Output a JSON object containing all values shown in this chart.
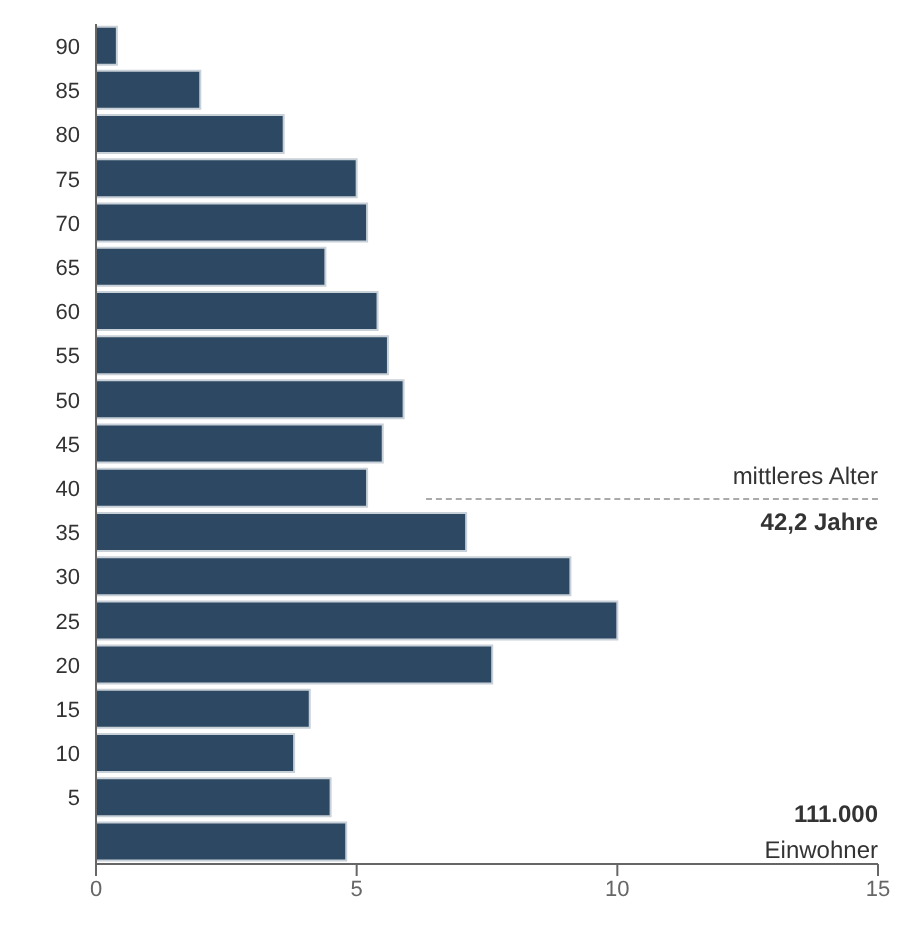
{
  "chart_data": {
    "type": "bar",
    "orientation": "horizontal",
    "categories": [
      "90",
      "85",
      "80",
      "75",
      "70",
      "65",
      "60",
      "55",
      "50",
      "45",
      "40",
      "35",
      "30",
      "25",
      "20",
      "15",
      "10",
      "5",
      null
    ],
    "values": [
      0.4,
      2.0,
      3.6,
      5.0,
      5.2,
      4.4,
      5.4,
      5.6,
      5.9,
      5.5,
      5.2,
      7.1,
      9.1,
      10.0,
      7.6,
      4.1,
      3.8,
      4.5,
      4.8
    ],
    "color": "#2d4862",
    "xlim": [
      0,
      15
    ],
    "xticks": [
      0,
      5,
      10,
      15
    ],
    "grid": false,
    "annotations": [
      "mittleres Alter",
      "42,2 Jahre",
      "111.000",
      "Einwohner"
    ]
  }
}
